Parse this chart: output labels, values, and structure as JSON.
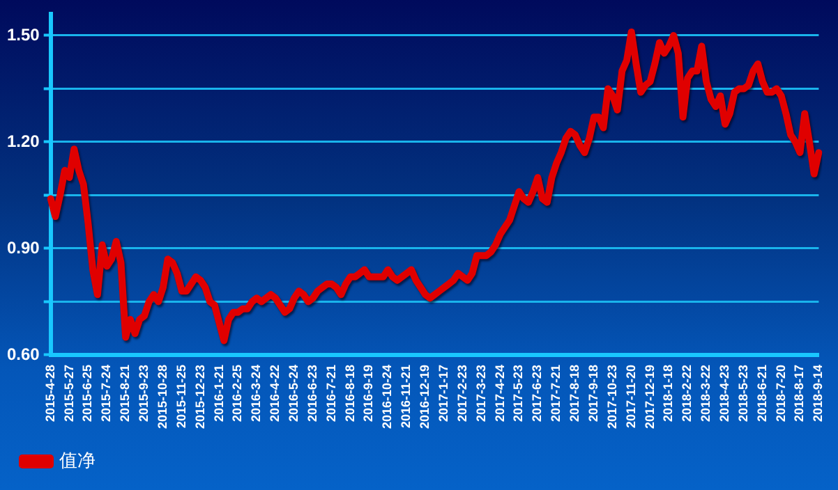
{
  "chart_data": {
    "type": "line",
    "categories": [
      "2015-4-28",
      null,
      null,
      null,
      "2015-5-27",
      null,
      null,
      null,
      "2015-6-25",
      null,
      null,
      null,
      "2015-7-24",
      null,
      null,
      null,
      "2015-8-21",
      null,
      null,
      null,
      "2015-9-23",
      null,
      null,
      null,
      "2015-10-28",
      null,
      null,
      null,
      "2015-11-25",
      null,
      null,
      null,
      "2015-12-23",
      null,
      null,
      null,
      "2016-1-21",
      null,
      null,
      null,
      "2016-2-25",
      null,
      null,
      null,
      "2016-3-24",
      null,
      null,
      null,
      "2016-4-22",
      null,
      null,
      null,
      "2016-5-24",
      null,
      null,
      null,
      "2016-6-23",
      null,
      null,
      null,
      "2016-7-21",
      null,
      null,
      null,
      "2016-8-18",
      null,
      null,
      null,
      "2016-9-19",
      null,
      null,
      null,
      "2016-10-24",
      null,
      null,
      null,
      "2016-11-21",
      null,
      null,
      null,
      "2016-12-19",
      null,
      null,
      null,
      "2017-1-17",
      null,
      null,
      null,
      "2017-2-23",
      null,
      null,
      null,
      "2017-3-23",
      null,
      null,
      null,
      "2017-4-24",
      null,
      null,
      null,
      "2017-5-23",
      null,
      null,
      null,
      "2017-6-23",
      null,
      null,
      null,
      "2017-7-21",
      null,
      null,
      null,
      "2017-8-18",
      null,
      null,
      null,
      "2017-9-18",
      null,
      null,
      null,
      "2017-10-23",
      null,
      null,
      null,
      "2017-11-20",
      null,
      null,
      null,
      "2017-12-19",
      null,
      null,
      null,
      "2018-1-18",
      null,
      null,
      null,
      "2018-2-22",
      null,
      null,
      null,
      "2018-3-22",
      null,
      null,
      null,
      "2018-4-23",
      null,
      null,
      null,
      "2018-5-23",
      null,
      null,
      null,
      "2018-6-21",
      null,
      null,
      null,
      "2018-7-20",
      null,
      null,
      null,
      "2018-8-17",
      null,
      null,
      null,
      "2018-9-14"
    ],
    "series": [
      {
        "name": "值净",
        "color": "#e00000",
        "values": [
          1.04,
          0.99,
          1.05,
          1.12,
          1.1,
          1.18,
          1.12,
          1.08,
          0.97,
          0.84,
          0.77,
          0.91,
          0.85,
          0.87,
          0.92,
          0.86,
          0.65,
          0.7,
          0.66,
          0.7,
          0.71,
          0.75,
          0.77,
          0.75,
          0.79,
          0.87,
          0.86,
          0.83,
          0.78,
          0.78,
          0.8,
          0.82,
          0.81,
          0.79,
          0.75,
          0.74,
          0.69,
          0.64,
          0.7,
          0.72,
          0.72,
          0.73,
          0.73,
          0.75,
          0.76,
          0.75,
          0.76,
          0.77,
          0.76,
          0.74,
          0.72,
          0.73,
          0.76,
          0.78,
          0.77,
          0.75,
          0.76,
          0.78,
          0.79,
          0.8,
          0.8,
          0.79,
          0.77,
          0.8,
          0.82,
          0.82,
          0.83,
          0.84,
          0.82,
          0.82,
          0.82,
          0.82,
          0.84,
          0.82,
          0.81,
          0.82,
          0.83,
          0.84,
          0.81,
          0.79,
          0.77,
          0.76,
          0.77,
          0.78,
          0.79,
          0.8,
          0.81,
          0.83,
          0.82,
          0.81,
          0.83,
          0.88,
          0.88,
          0.88,
          0.89,
          0.91,
          0.94,
          0.96,
          0.98,
          1.02,
          1.06,
          1.04,
          1.03,
          1.06,
          1.1,
          1.04,
          1.03,
          1.1,
          1.14,
          1.17,
          1.21,
          1.23,
          1.22,
          1.19,
          1.17,
          1.21,
          1.27,
          1.27,
          1.24,
          1.35,
          1.33,
          1.29,
          1.4,
          1.43,
          1.51,
          1.42,
          1.34,
          1.36,
          1.37,
          1.42,
          1.48,
          1.45,
          1.47,
          1.5,
          1.45,
          1.27,
          1.38,
          1.4,
          1.4,
          1.47,
          1.37,
          1.32,
          1.3,
          1.33,
          1.25,
          1.28,
          1.34,
          1.35,
          1.35,
          1.36,
          1.4,
          1.42,
          1.37,
          1.34,
          1.34,
          1.35,
          1.33,
          1.28,
          1.22,
          1.2,
          1.17,
          1.28,
          1.2,
          1.11,
          1.17
        ]
      }
    ],
    "ylim": [
      0.6,
      1.56
    ],
    "yticks": [
      {
        "value": 0.6,
        "label": "0.60"
      },
      {
        "value": 0.75,
        "label": null
      },
      {
        "value": 0.9,
        "label": "0.90"
      },
      {
        "value": 1.05,
        "label": null
      },
      {
        "value": 1.2,
        "label": "1.20"
      },
      {
        "value": 1.35,
        "label": null
      },
      {
        "value": 1.5,
        "label": "1.50"
      }
    ],
    "grid": "y",
    "legend": "bottom left",
    "marker": "none",
    "line_style": "solid"
  }
}
